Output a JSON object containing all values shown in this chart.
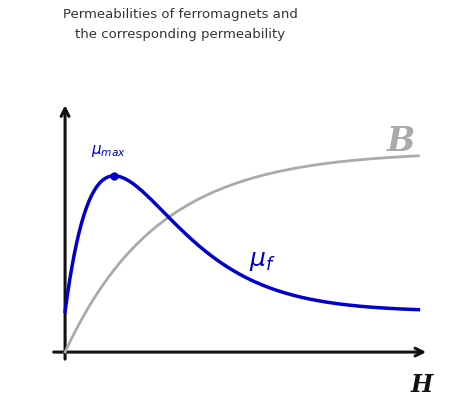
{
  "title_line1": "Permeabilities of ferromagnets and",
  "title_line2": "the corresponding permeability",
  "title_fontsize": 9.5,
  "title_color": "#333333",
  "bg_color": "#ffffff",
  "B_label": "B",
  "B_color": "#aaaaaa",
  "mu_f_color": "#0000cc",
  "mu_max_color": "#0000cc",
  "H_label": "H",
  "axis_color": "#111111",
  "curve_lw": 2.5,
  "B_curve_lw": 2.0,
  "fig_width": 4.74,
  "fig_height": 3.96,
  "dpi": 100
}
